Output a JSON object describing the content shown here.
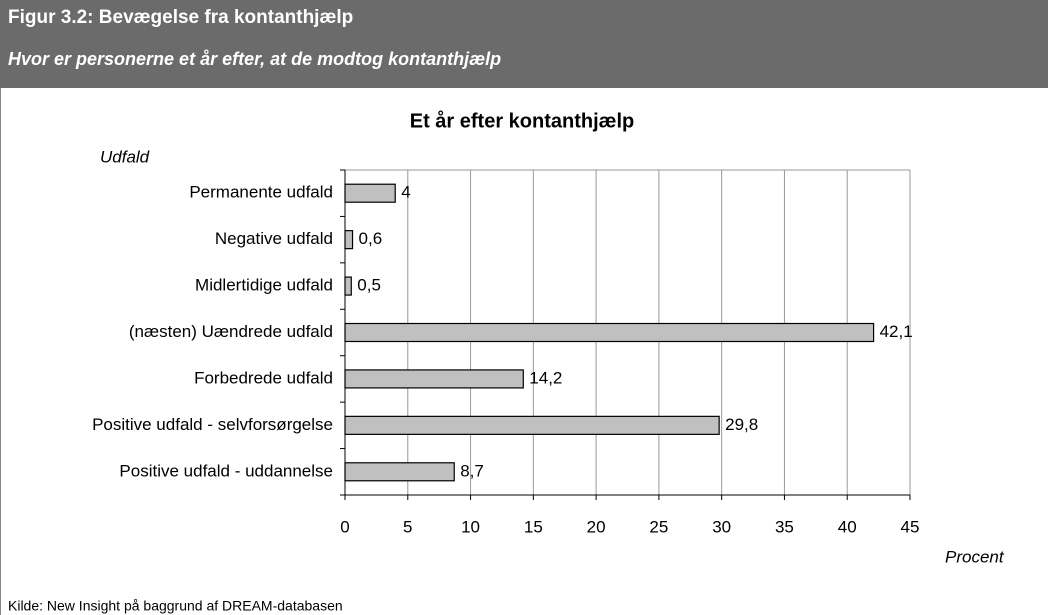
{
  "header": {
    "title": "Figur 3.2: Bevægelse fra kontanthjælp",
    "subtitle": "Hvor er personerne et år efter, at de modtog kontanthjælp"
  },
  "chart_data": {
    "type": "bar",
    "orientation": "horizontal",
    "title": "Et år efter kontanthjælp",
    "y_label": "Udfald",
    "x_label": "Procent",
    "categories": [
      "Permanente udfald",
      "Negative udfald",
      "Midlertidige udfald",
      "(næsten) Uændrede udfald",
      "Forbedrede udfald",
      "Positive udfald - selvforsørgelse",
      "Positive udfald - uddannelse"
    ],
    "values": [
      4,
      0.6,
      0.5,
      42.1,
      14.2,
      29.8,
      8.7
    ],
    "value_labels": [
      "4",
      "0,6",
      "0,5",
      "42,1",
      "14,2",
      "29,8",
      "8,7"
    ],
    "color": "#c0c0c0",
    "xlim": [
      0,
      45
    ],
    "xticks": [
      0,
      5,
      10,
      15,
      20,
      25,
      30,
      35,
      40,
      45
    ],
    "grid": true
  },
  "source": "Kilde: New Insight på baggrund af DREAM-databasen"
}
